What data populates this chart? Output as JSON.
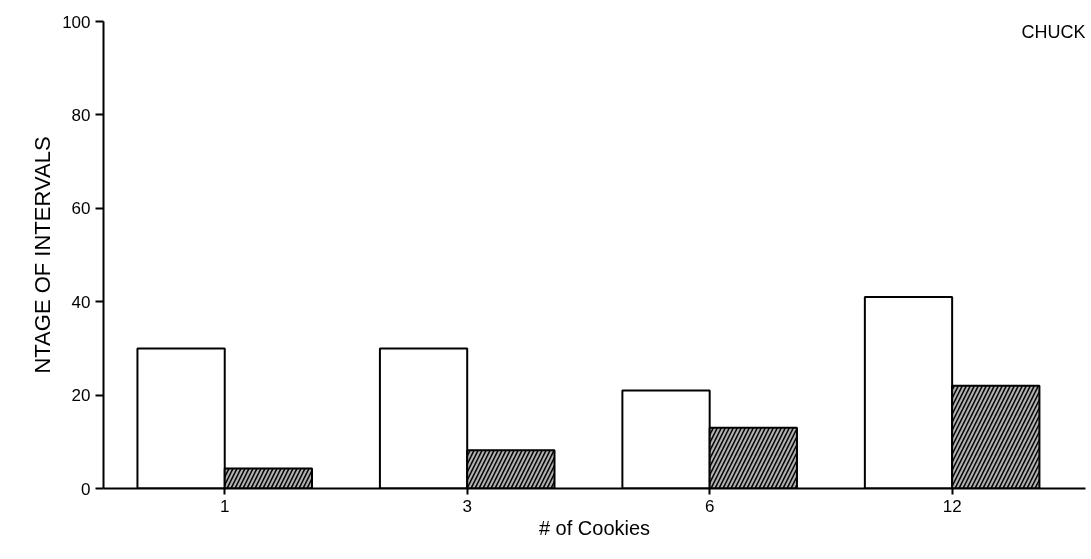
{
  "chart_data": {
    "type": "bar",
    "categories": [
      "1",
      "3",
      "6",
      "12"
    ],
    "series": [
      {
        "color": "#ffffff",
        "values": [
          30,
          30,
          21,
          41
        ]
      },
      {
        "color": "#b0b0b0",
        "values": [
          4.3,
          8.2,
          13,
          22
        ]
      }
    ],
    "xlabel": "# of Cookies",
    "ylabel": "NTAGE OF INTERVALS",
    "ylim": [
      0,
      100
    ],
    "yticks": [
      0,
      20,
      40,
      60,
      80,
      100
    ],
    "annotations": [
      "CHUCK"
    ],
    "grid": false
  }
}
